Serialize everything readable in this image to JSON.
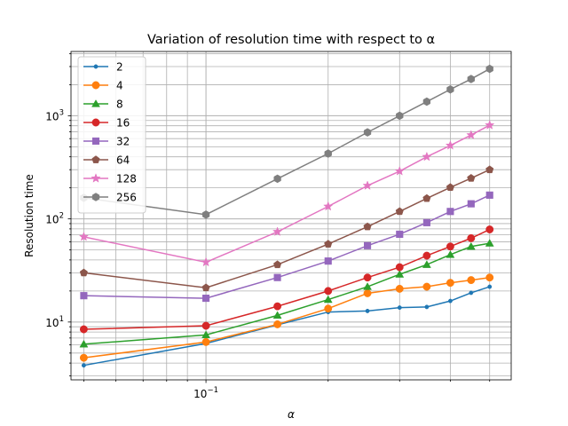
{
  "chart_data": {
    "type": "line",
    "title": "Variation of resolution time with respect to α",
    "xlabel": "α",
    "ylabel": "Resolution time",
    "xscale": "log",
    "yscale": "log",
    "xlim": [
      0.0465,
      0.565
    ],
    "ylim": [
      2.75,
      4200
    ],
    "grid": "major and minor",
    "legend_position": "top-left",
    "x": [
      0.05,
      0.1,
      0.15,
      0.2,
      0.25,
      0.3,
      0.35,
      0.4,
      0.45,
      0.5
    ],
    "x_ticks": [
      {
        "value": 0.1,
        "base": "10",
        "exp": "−1"
      }
    ],
    "y_ticks": [
      {
        "value": 10,
        "base": "10",
        "exp": "1"
      },
      {
        "value": 100,
        "base": "10",
        "exp": "2"
      },
      {
        "value": 1000,
        "base": "10",
        "exp": "3"
      }
    ],
    "series": [
      {
        "name": "2",
        "color": "#1f77b4",
        "marker": "point",
        "values": [
          3.8,
          6.2,
          9.4,
          12.5,
          12.8,
          13.8,
          14.0,
          16.0,
          19.2,
          22.0
        ]
      },
      {
        "name": "4",
        "color": "#ff7f0e",
        "marker": "circle",
        "values": [
          4.5,
          6.4,
          9.5,
          13.5,
          19.0,
          21.0,
          22.0,
          24.0,
          25.5,
          27.0
        ]
      },
      {
        "name": "8",
        "color": "#2ca02c",
        "marker": "triangle",
        "values": [
          6.1,
          7.5,
          11.6,
          16.5,
          22.0,
          29.0,
          36.0,
          45.0,
          54.0,
          58.0
        ]
      },
      {
        "name": "16",
        "color": "#d62728",
        "marker": "circle",
        "values": [
          8.5,
          9.2,
          14.2,
          20.0,
          27.0,
          34.0,
          44.0,
          54.0,
          65.0,
          79.0
        ]
      },
      {
        "name": "32",
        "color": "#9467bd",
        "marker": "square",
        "values": [
          18.0,
          17.0,
          27.0,
          39.0,
          55.0,
          71.0,
          92.0,
          118.0,
          140.0,
          170.0
        ]
      },
      {
        "name": "64",
        "color": "#8c564b",
        "marker": "pentagon",
        "values": [
          30.0,
          21.5,
          36.0,
          57.0,
          84.0,
          118.0,
          158.0,
          202.0,
          248.0,
          300.0
        ]
      },
      {
        "name": "128",
        "color": "#e377c2",
        "marker": "star",
        "values": [
          67.0,
          38.0,
          75.0,
          132.0,
          210.0,
          290.0,
          400.0,
          515.0,
          650.0,
          810.0
        ]
      },
      {
        "name": "256",
        "color": "#7f7f7f",
        "marker": "hexagon",
        "values": [
          160.0,
          110.0,
          245.0,
          430.0,
          690.0,
          1000.0,
          1370.0,
          1800.0,
          2270.0,
          2850.0
        ]
      }
    ]
  }
}
